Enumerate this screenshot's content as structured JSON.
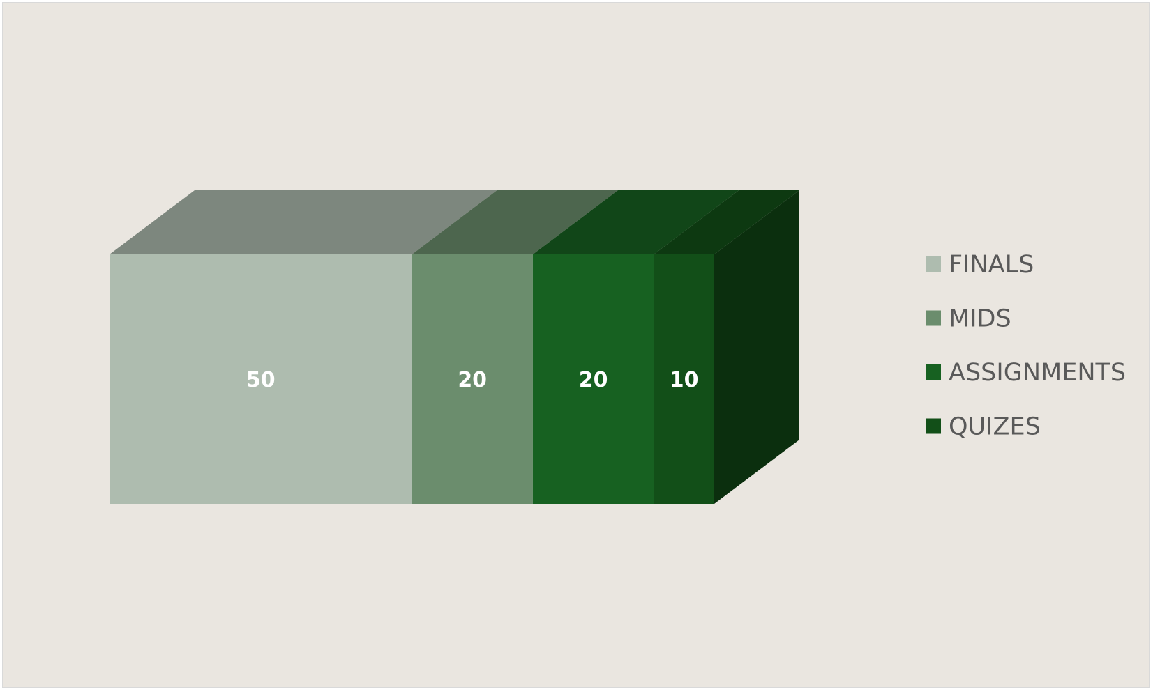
{
  "chart_data": {
    "type": "bar",
    "subtype": "3d-stacked-horizontal-100",
    "categories": [
      ""
    ],
    "series": [
      {
        "name": "FINALS",
        "values": [
          50
        ],
        "color": "#aebcaf"
      },
      {
        "name": "MIDS",
        "values": [
          20
        ],
        "color": "#6b8d6d"
      },
      {
        "name": "ASSIGNMENTS",
        "values": [
          20
        ],
        "color": "#176121"
      },
      {
        "name": "QUIZES",
        "values": [
          10
        ],
        "color": "#124f18"
      }
    ],
    "title": "",
    "xlabel": "",
    "ylabel": "",
    "legend": "right",
    "grid": false,
    "data_labels": true,
    "background": "#eae6e0"
  }
}
